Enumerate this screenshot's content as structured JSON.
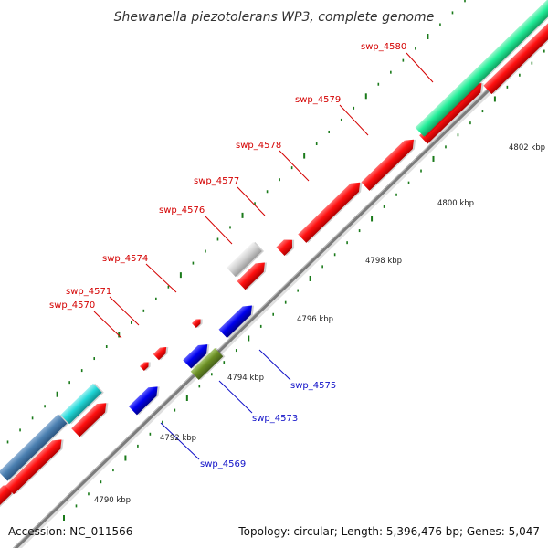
{
  "title": "Shewanella piezotolerans WP3, complete genome",
  "footer": {
    "accession": "Accession: NC_011566",
    "summary": "Topology: circular; Length: 5,396,476 bp; Genes: 5,047"
  },
  "colors": {
    "backbone": "#808080",
    "top_strand_label": "#d40000",
    "bottom_strand_label": "#1010c8",
    "cds": "#ff0000",
    "blue_cds": "#0000ee",
    "rrna": "#22ee99",
    "trna": "#22d8d8",
    "steel": "#4a7fb0",
    "olive": "#6b8e23",
    "pseudo": "#cccccc",
    "tick": "#1a7a1a"
  },
  "ticks": [
    "4790 kbp",
    "4792 kbp",
    "4794 kbp",
    "4796 kbp",
    "4798 kbp",
    "4800 kbp",
    "4802 kbp"
  ],
  "top_labels": [
    "swp_4580",
    "swp_4579",
    "swp_4578",
    "swp_4577",
    "swp_4576",
    "swp_4574",
    "swp_4571",
    "swp_4570"
  ],
  "bottom_labels": [
    "swp_4575",
    "swp_4573",
    "swp_4569"
  ]
}
